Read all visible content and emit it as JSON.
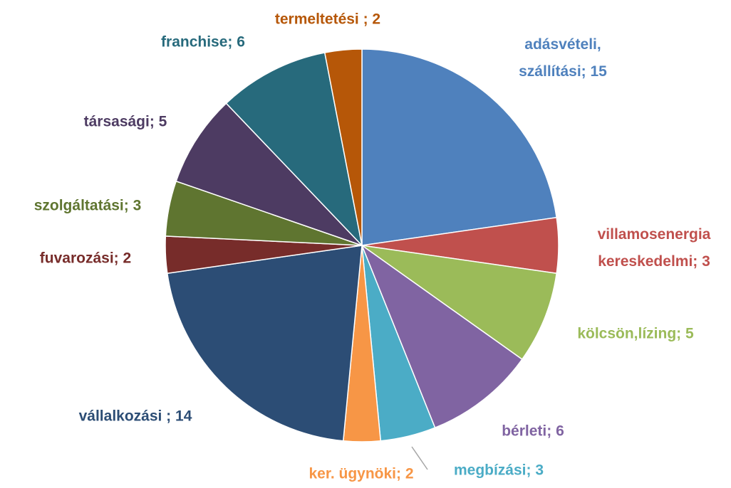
{
  "chart_data": {
    "type": "pie",
    "values": [
      15,
      3,
      5,
      6,
      3,
      2,
      14,
      2,
      3,
      5,
      6,
      2
    ],
    "value_labels": [
      [
        "adásvételi,",
        "szállítási; 15"
      ],
      [
        "villamosenergia",
        "kereskedelmi; 3"
      ],
      "kölcsön,lízing; 5",
      "bérleti; 6",
      "megbízási; 3",
      "ker. ügynöki; 2",
      "vállalkozási ; 14",
      "fuvarozási; 2",
      "szolgáltatási; 3",
      "társasági; 5",
      "franchise; 6",
      "termeltetési ; 2"
    ],
    "colors": [
      "#4f81bd",
      "#c0504d",
      "#9bbb59",
      "#8064a2",
      "#4bacc6",
      "#f79646",
      "#2c4d75",
      "#772c2a",
      "#5f7530",
      "#4d3b62",
      "#276a7c",
      "#b65708"
    ]
  }
}
